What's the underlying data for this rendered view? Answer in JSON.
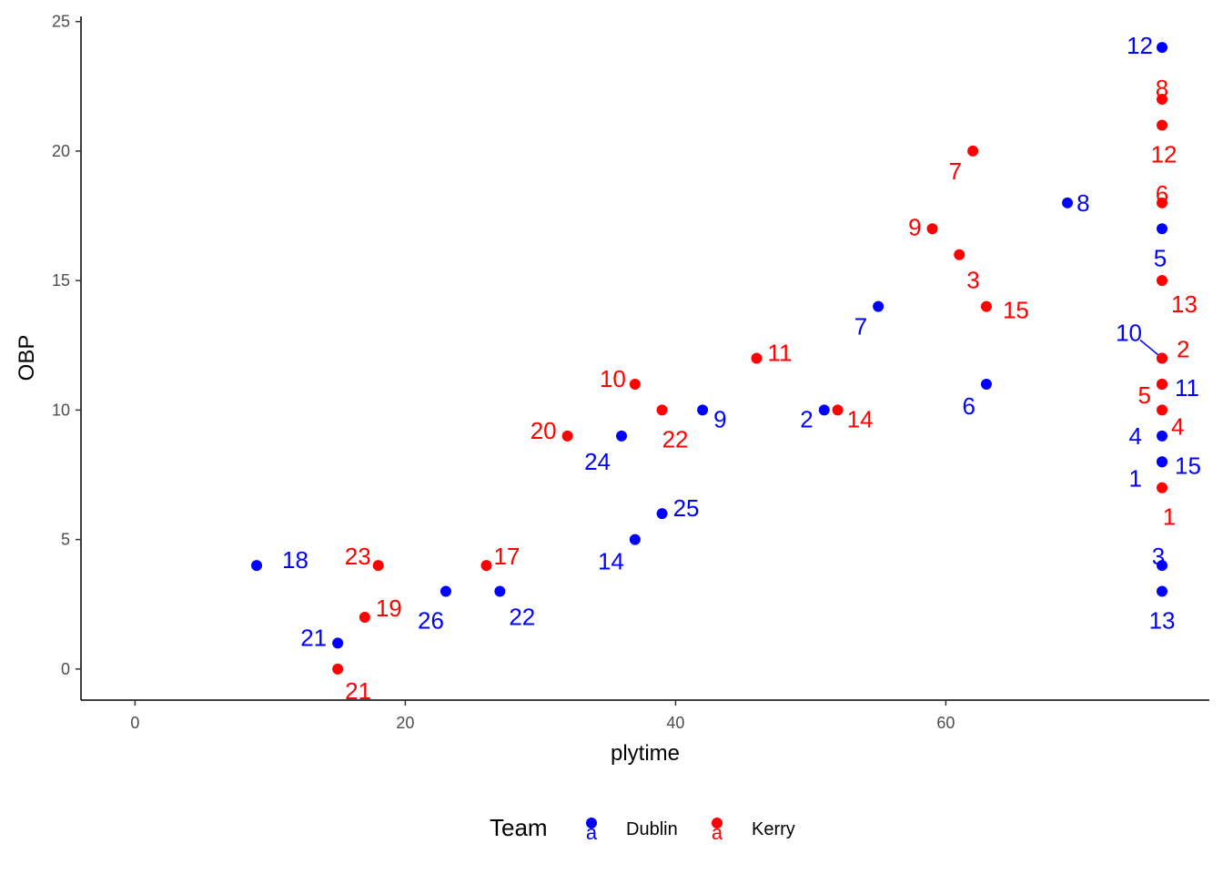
{
  "chart_data": {
    "type": "scatter",
    "xlabel": "plytime",
    "ylabel": "OBP",
    "xlim": [
      -4,
      79.5
    ],
    "ylim": [
      -1.2,
      25.2
    ],
    "xticks": [
      0,
      20,
      40,
      60
    ],
    "yticks": [
      0,
      5,
      10,
      15,
      20,
      25
    ],
    "grid": false,
    "legend": {
      "title": "Team",
      "placement": "bottom",
      "key_letter": "a"
    },
    "series": [
      {
        "name": "Dublin",
        "color": "#0000ff",
        "points": [
          {
            "x": 9,
            "y": 4,
            "label": "18"
          },
          {
            "x": 15,
            "y": 1,
            "label": "21"
          },
          {
            "x": 23,
            "y": 3,
            "label": "26"
          },
          {
            "x": 27,
            "y": 3,
            "label": "22"
          },
          {
            "x": 36,
            "y": 9,
            "label": "24"
          },
          {
            "x": 37,
            "y": 5,
            "label": "14"
          },
          {
            "x": 39,
            "y": 6,
            "label": "25"
          },
          {
            "x": 42,
            "y": 10,
            "label": "9"
          },
          {
            "x": 51,
            "y": 10,
            "label": "2"
          },
          {
            "x": 55,
            "y": 14,
            "label": "7"
          },
          {
            "x": 63,
            "y": 11,
            "label": "6"
          },
          {
            "x": 69,
            "y": 18,
            "label": "8"
          },
          {
            "x": 76,
            "y": 24,
            "label": "12"
          },
          {
            "x": 76,
            "y": 17,
            "label": "5"
          },
          {
            "x": 76,
            "y": 12,
            "label": "10"
          },
          {
            "x": 76,
            "y": 11,
            "label": "11"
          },
          {
            "x": 76,
            "y": 9,
            "label": "4"
          },
          {
            "x": 76,
            "y": 8,
            "label": "1"
          },
          {
            "x": 76,
            "y": 8,
            "label": "15"
          },
          {
            "x": 76,
            "y": 4,
            "label": "3"
          },
          {
            "x": 76,
            "y": 3,
            "label": "13"
          }
        ]
      },
      {
        "name": "Kerry",
        "color": "#ff0000",
        "points": [
          {
            "x": 15,
            "y": 0,
            "label": "21"
          },
          {
            "x": 17,
            "y": 2,
            "label": "19"
          },
          {
            "x": 18,
            "y": 4,
            "label": "23"
          },
          {
            "x": 26,
            "y": 4,
            "label": "17"
          },
          {
            "x": 32,
            "y": 9,
            "label": "20"
          },
          {
            "x": 37,
            "y": 11,
            "label": "10"
          },
          {
            "x": 39,
            "y": 10,
            "label": "22"
          },
          {
            "x": 46,
            "y": 12,
            "label": "11"
          },
          {
            "x": 52,
            "y": 10,
            "label": "14"
          },
          {
            "x": 59,
            "y": 17,
            "label": "9"
          },
          {
            "x": 61,
            "y": 16,
            "label": "3"
          },
          {
            "x": 62,
            "y": 20,
            "label": "7"
          },
          {
            "x": 63,
            "y": 14,
            "label": "15"
          },
          {
            "x": 76,
            "y": 22,
            "label": "8"
          },
          {
            "x": 76,
            "y": 21,
            "label": "12"
          },
          {
            "x": 76,
            "y": 18,
            "label": "6"
          },
          {
            "x": 76,
            "y": 15,
            "label": "13"
          },
          {
            "x": 76,
            "y": 12,
            "label": "2"
          },
          {
            "x": 76,
            "y": 11,
            "label": "5"
          },
          {
            "x": 76,
            "y": 10,
            "label": "4"
          },
          {
            "x": 76,
            "y": 7,
            "label": "1"
          }
        ]
      }
    ]
  }
}
